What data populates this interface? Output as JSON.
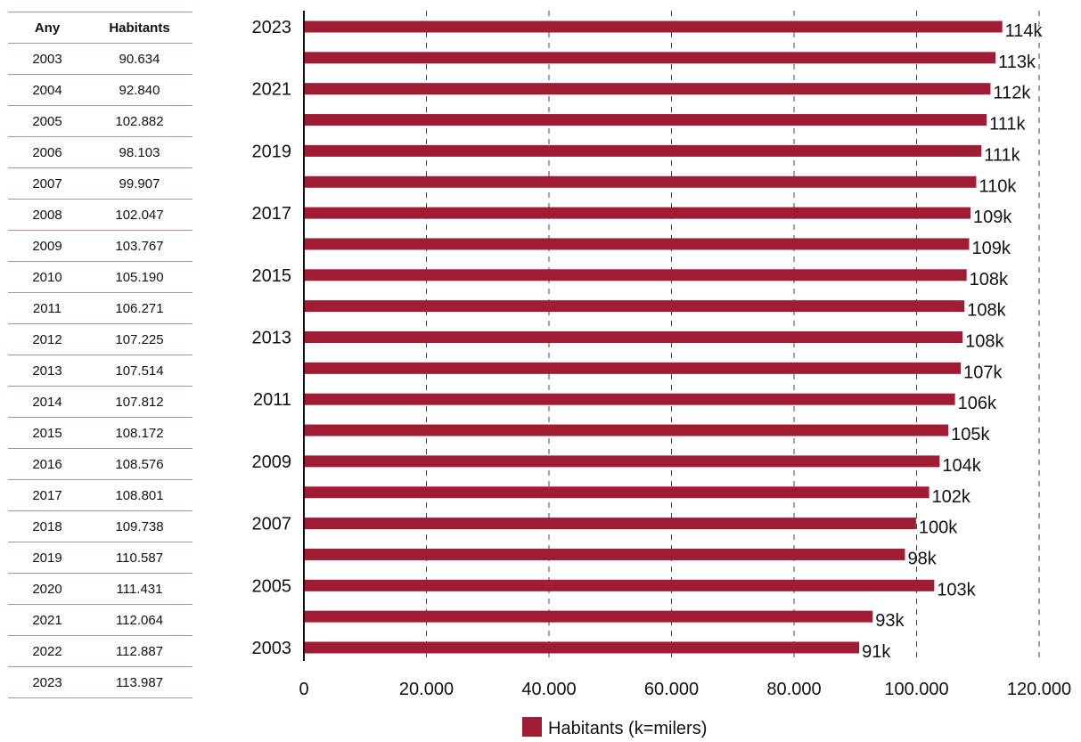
{
  "table": {
    "headers": [
      "Any",
      "Habitants"
    ],
    "rows": [
      [
        "2003",
        "90.634"
      ],
      [
        "2004",
        "92.840"
      ],
      [
        "2005",
        "102.882"
      ],
      [
        "2006",
        "98.103"
      ],
      [
        "2007",
        "99.907"
      ],
      [
        "2008",
        "102.047"
      ],
      [
        "2009",
        "103.767"
      ],
      [
        "2010",
        "105.190"
      ],
      [
        "2011",
        "106.271"
      ],
      [
        "2012",
        "107.225"
      ],
      [
        "2013",
        "107.514"
      ],
      [
        "2014",
        "107.812"
      ],
      [
        "2015",
        "108.172"
      ],
      [
        "2016",
        "108.576"
      ],
      [
        "2017",
        "108.801"
      ],
      [
        "2018",
        "109.738"
      ],
      [
        "2019",
        "110.587"
      ],
      [
        "2020",
        "111.431"
      ],
      [
        "2021",
        "112.064"
      ],
      [
        "2022",
        "112.887"
      ],
      [
        "2023",
        "113.987"
      ]
    ]
  },
  "chart_data": {
    "type": "bar",
    "orientation": "horizontal",
    "categories": [
      "2003",
      "2004",
      "2005",
      "2006",
      "2007",
      "2008",
      "2009",
      "2010",
      "2011",
      "2012",
      "2013",
      "2014",
      "2015",
      "2016",
      "2017",
      "2018",
      "2019",
      "2020",
      "2021",
      "2022",
      "2023"
    ],
    "series": [
      {
        "name": "Habitants (k=milers)",
        "values": [
          90634,
          92840,
          102882,
          98103,
          99907,
          102047,
          103767,
          105190,
          106271,
          107225,
          107514,
          107812,
          108172,
          108576,
          108801,
          109738,
          110587,
          111431,
          112064,
          112887,
          113987
        ],
        "data_labels": [
          "91k",
          "93k",
          "103k",
          "98k",
          "100k",
          "102k",
          "104k",
          "105k",
          "106k",
          "107k",
          "108k",
          "108k",
          "108k",
          "109k",
          "109k",
          "110k",
          "111k",
          "111k",
          "112k",
          "113k",
          "114k"
        ],
        "color": "#a01c34"
      }
    ],
    "category_labels_shown": [
      "2003",
      "2005",
      "2007",
      "2009",
      "2011",
      "2013",
      "2015",
      "2017",
      "2019",
      "2021",
      "2023"
    ],
    "x_ticks": [
      0,
      20000,
      40000,
      60000,
      80000,
      100000,
      120000
    ],
    "x_tick_labels": [
      "0",
      "20.000",
      "40.000",
      "60.000",
      "80.000",
      "100.000",
      "120.000"
    ],
    "xlim": [
      0,
      120000
    ],
    "grid": "vertical dashed",
    "legend": "bottom-center",
    "xlabel": "",
    "ylabel": "",
    "title": ""
  }
}
